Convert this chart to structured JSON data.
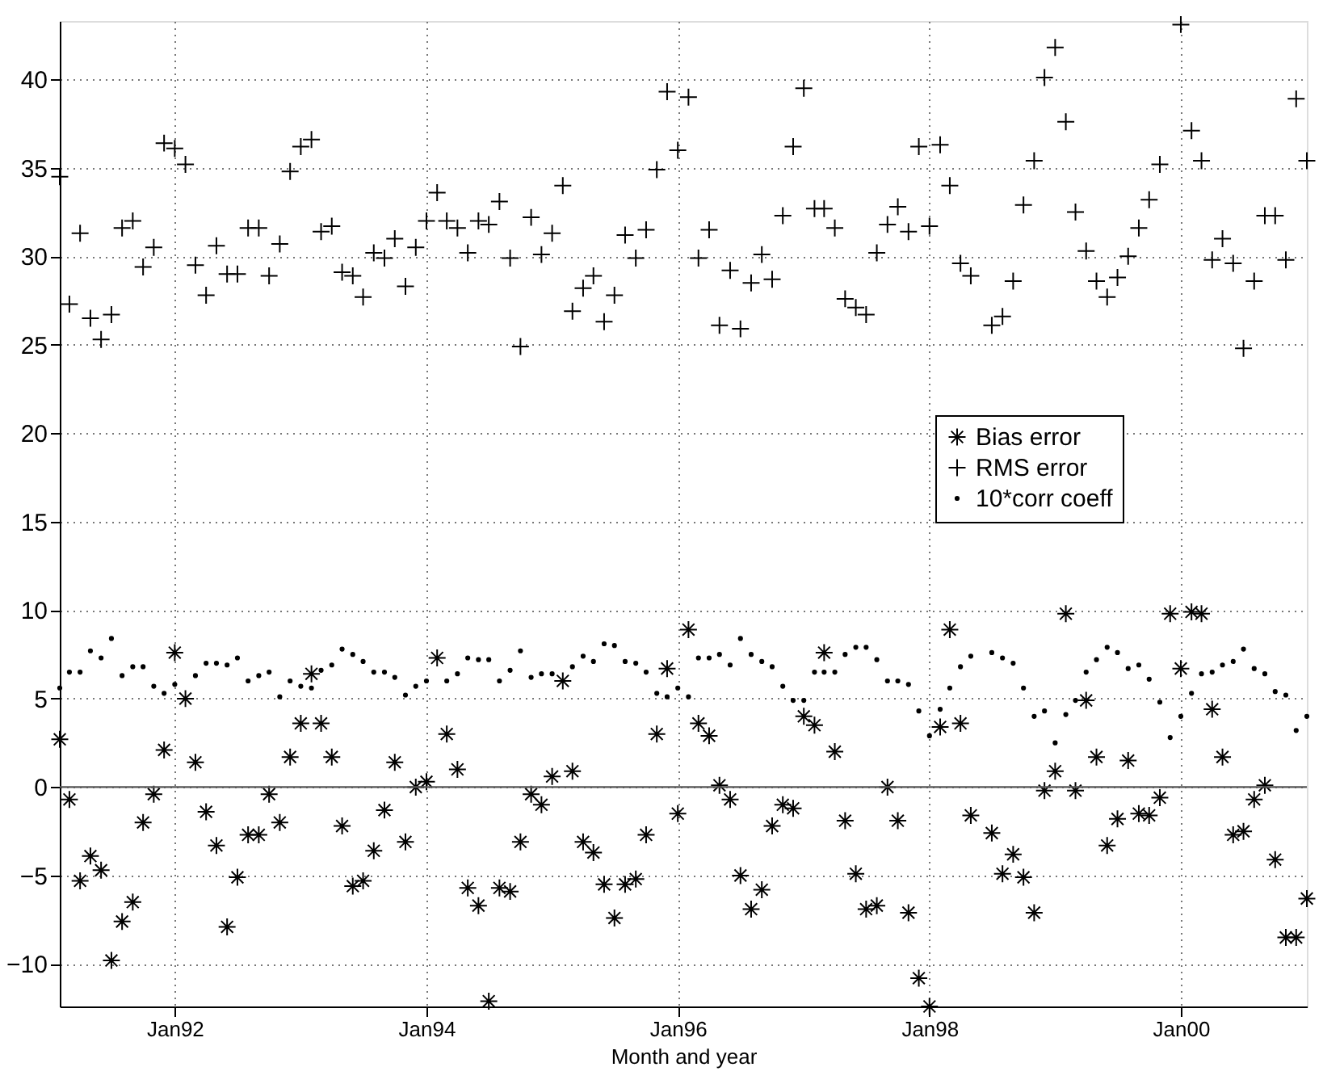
{
  "chart_data": {
    "type": "scatter",
    "xlabel": "Month and year",
    "x": [
      "1991-02",
      "1991-03",
      "1991-04",
      "1991-05",
      "1991-06",
      "1991-07",
      "1991-08",
      "1991-09",
      "1991-10",
      "1991-11",
      "1991-12",
      "1992-01",
      "1992-02",
      "1992-03",
      "1992-04",
      "1992-05",
      "1992-06",
      "1992-07",
      "1992-08",
      "1992-09",
      "1992-10",
      "1992-11",
      "1992-12",
      "1993-01",
      "1993-02",
      "1993-03",
      "1993-04",
      "1993-05",
      "1993-06",
      "1993-07",
      "1993-08",
      "1993-09",
      "1993-10",
      "1993-11",
      "1993-12",
      "1994-01",
      "1994-02",
      "1994-03",
      "1994-04",
      "1994-05",
      "1994-06",
      "1994-07",
      "1994-08",
      "1994-09",
      "1994-10",
      "1994-11",
      "1994-12",
      "1995-01",
      "1995-02",
      "1995-03",
      "1995-04",
      "1995-05",
      "1995-06",
      "1995-07",
      "1995-08",
      "1995-09",
      "1995-10",
      "1995-11",
      "1995-12",
      "1996-01",
      "1996-02",
      "1996-03",
      "1996-04",
      "1996-05",
      "1996-06",
      "1996-07",
      "1996-08",
      "1996-09",
      "1996-10",
      "1996-11",
      "1996-12",
      "1997-01",
      "1997-02",
      "1997-03",
      "1997-04",
      "1997-05",
      "1997-06",
      "1997-07",
      "1997-08",
      "1997-09",
      "1997-10",
      "1997-11",
      "1997-12",
      "1998-01",
      "1998-02",
      "1998-03",
      "1998-04",
      "1998-05",
      "1998-06",
      "1998-07",
      "1998-08",
      "1998-09",
      "1998-10",
      "1998-11",
      "1998-12",
      "1999-01",
      "1999-02",
      "1999-03",
      "1999-04",
      "1999-05",
      "1999-06",
      "1999-07",
      "1999-08",
      "1999-09",
      "1999-10",
      "1999-11",
      "1999-12",
      "2000-01",
      "2000-02",
      "2000-03",
      "2000-04",
      "2000-05",
      "2000-06",
      "2000-07",
      "2000-08",
      "2000-09",
      "2000-10",
      "2000-11",
      "2000-12",
      "2001-01"
    ],
    "series": [
      {
        "name": "Bias error",
        "color": "#000000",
        "values": [
          2.7,
          -0.7,
          -5.3,
          -3.9,
          -4.7,
          -9.8,
          -7.6,
          -6.5,
          -2.0,
          -0.4,
          2.1,
          7.6,
          5.0,
          1.4,
          -1.4,
          -3.3,
          -7.9,
          -5.1,
          -2.7,
          -2.7,
          -0.4,
          -2.0,
          1.7,
          3.6,
          6.4,
          3.6,
          1.7,
          -2.2,
          -5.6,
          -5.3,
          -3.6,
          -1.3,
          1.4,
          -3.1,
          0.0,
          0.3,
          7.3,
          3.0,
          1.0,
          -5.7,
          -6.7,
          -12.1,
          -5.7,
          -5.9,
          -3.1,
          -0.4,
          -1.0,
          0.6,
          6.0,
          0.9,
          -3.1,
          -3.7,
          -5.5,
          -7.4,
          -5.5,
          -5.2,
          -2.7,
          3.0,
          6.7,
          -1.5,
          8.9,
          3.6,
          2.9,
          0.1,
          -0.7,
          -5.0,
          -6.9,
          -5.8,
          -2.2,
          -1.0,
          -1.2,
          4.0,
          3.5,
          7.6,
          2.0,
          -1.9,
          -4.9,
          -6.9,
          -6.7,
          0.0,
          -1.9,
          -7.1,
          -10.8,
          -12.4,
          3.4,
          8.9,
          3.6,
          -1.6,
          null,
          -2.6,
          -4.9,
          -3.8,
          -5.1,
          -7.1,
          -0.2,
          0.9,
          9.8,
          -0.2,
          4.9,
          1.7,
          -3.3,
          -1.8,
          1.5,
          -1.5,
          -1.6,
          -0.6,
          9.8,
          6.7,
          9.9,
          9.8,
          4.4,
          1.7,
          -2.7,
          -2.5,
          -0.7,
          0.1,
          -4.1,
          -8.5,
          -8.5,
          -6.3
        ]
      },
      {
        "name": "RMS error",
        "color": "#000000",
        "marker": "cross",
        "values": [
          34.5,
          27.3,
          31.3,
          26.5,
          25.3,
          26.7,
          31.6,
          32.0,
          29.4,
          30.5,
          36.4,
          36.1,
          35.2,
          29.5,
          27.8,
          30.6,
          29.0,
          29.0,
          31.6,
          31.6,
          28.9,
          30.7,
          34.8,
          36.2,
          36.6,
          31.4,
          31.7,
          29.1,
          28.9,
          27.7,
          30.2,
          29.9,
          31.0,
          28.3,
          30.5,
          32.0,
          33.6,
          32.0,
          31.6,
          30.2,
          32.0,
          31.8,
          33.1,
          29.9,
          24.9,
          32.2,
          30.1,
          31.3,
          34.0,
          26.9,
          28.2,
          28.9,
          26.3,
          27.8,
          31.2,
          29.9,
          31.5,
          34.9,
          39.3,
          36.0,
          39.0,
          29.9,
          31.5,
          26.1,
          29.2,
          25.9,
          28.5,
          30.1,
          28.7,
          32.3,
          36.2,
          39.5,
          32.7,
          32.7,
          31.6,
          27.6,
          27.1,
          26.7,
          30.2,
          31.8,
          32.8,
          31.4,
          36.2,
          31.7,
          36.3,
          34.0,
          29.6,
          28.9,
          null,
          26.1,
          26.6,
          28.6,
          32.9,
          35.4,
          40.1,
          41.8,
          37.6,
          32.5,
          30.3,
          28.6,
          27.7,
          28.8,
          30.0,
          31.6,
          33.2,
          35.2,
          null,
          43.1,
          37.1,
          35.4,
          29.8,
          31.0,
          29.6,
          24.8,
          28.6,
          32.3,
          32.3,
          29.8,
          38.9,
          35.4
        ]
      },
      {
        "name": "10*corr coeff",
        "color": "#000000",
        "marker": "circle",
        "values": [
          5.6,
          6.5,
          6.5,
          7.7,
          7.3,
          8.4,
          6.3,
          6.8,
          6.8,
          5.7,
          5.3,
          5.8,
          null,
          6.3,
          7.0,
          7.0,
          6.9,
          7.3,
          6.0,
          6.3,
          6.5,
          5.1,
          6.0,
          5.7,
          5.6,
          6.6,
          6.9,
          7.8,
          7.5,
          7.1,
          6.5,
          6.5,
          6.2,
          5.2,
          5.7,
          6.0,
          null,
          6.0,
          6.4,
          7.3,
          7.2,
          7.2,
          6.0,
          6.6,
          7.7,
          6.2,
          6.4,
          6.4,
          null,
          6.8,
          7.4,
          7.1,
          8.1,
          8.0,
          7.1,
          7.0,
          6.5,
          5.3,
          5.1,
          5.6,
          5.1,
          7.3,
          7.3,
          7.5,
          6.9,
          8.4,
          7.5,
          7.1,
          6.8,
          5.7,
          4.9,
          4.9,
          6.5,
          6.5,
          6.5,
          7.5,
          7.9,
          7.9,
          7.2,
          6.0,
          6.0,
          5.8,
          4.3,
          2.9,
          4.4,
          5.6,
          6.8,
          7.4,
          null,
          7.6,
          7.3,
          7.0,
          5.6,
          4.0,
          4.3,
          2.5,
          4.1,
          4.9,
          6.5,
          7.2,
          7.9,
          7.6,
          6.7,
          6.9,
          6.1,
          4.8,
          2.8,
          4.0,
          5.3,
          6.4,
          6.5,
          6.9,
          7.1,
          7.8,
          6.7,
          6.4,
          5.4,
          5.2,
          3.2,
          4.0
        ]
      }
    ],
    "xlim": [
      "1991-02",
      "2001-01"
    ],
    "xticks": [
      {
        "value": "1992-01",
        "label": "Jan92"
      },
      {
        "value": "1994-01",
        "label": "Jan94"
      },
      {
        "value": "1996-01",
        "label": "Jan96"
      },
      {
        "value": "1998-01",
        "label": "Jan98"
      },
      {
        "value": "2000-01",
        "label": "Jan00"
      }
    ],
    "ylim": [
      -12.4,
      43.3
    ],
    "yticks": [
      -10,
      -5,
      0,
      5,
      10,
      15,
      20,
      25,
      30,
      35,
      40
    ],
    "ref_lines": [
      {
        "axis": "y",
        "value": 0,
        "label": null,
        "color": "#555555",
        "line_style": "solid"
      }
    ],
    "grid": true,
    "legend": "right"
  }
}
